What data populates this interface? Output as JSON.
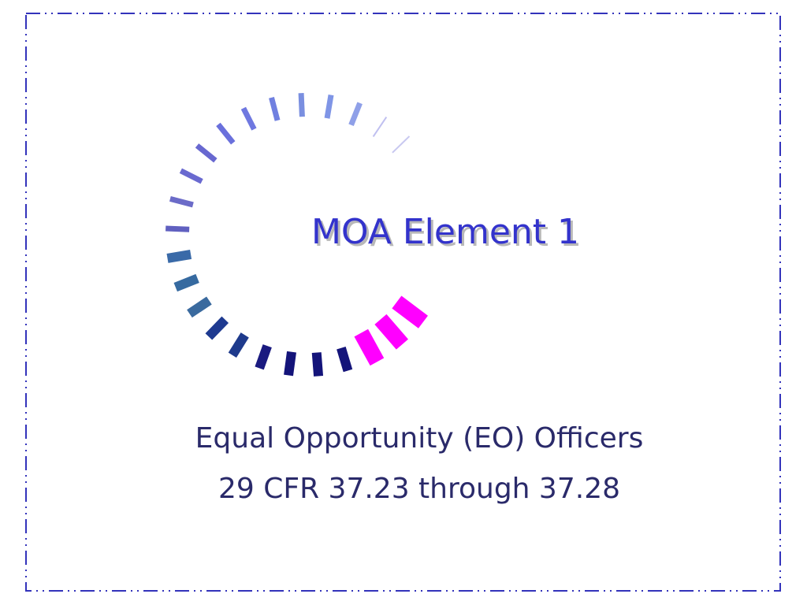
{
  "slide": {
    "title": "MOA Element 1",
    "subtitle": [
      "Equal Opportunity (EO) Officers",
      "29 CFR 37.23 through 37.28"
    ]
  }
}
